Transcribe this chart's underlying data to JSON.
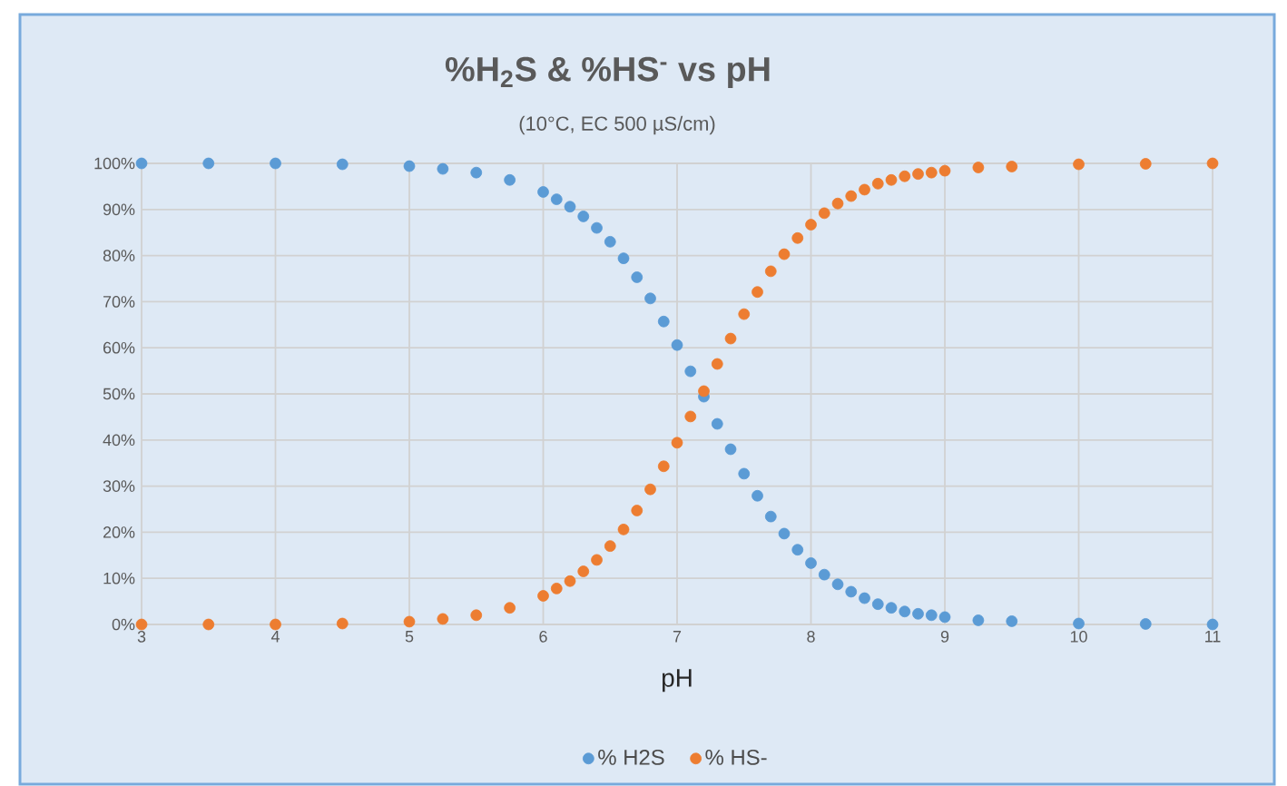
{
  "chart_data": {
    "type": "scatter",
    "title": "%H$_{2}$S & %HS$^{-}$ vs pH",
    "subtitle": "(10°C, EC 500 µS/cm)",
    "xlabel": "pH",
    "x": [
      3,
      3.5,
      4,
      4.5,
      5,
      5.25,
      5.5,
      5.75,
      6,
      6.1,
      6.2,
      6.3,
      6.4,
      6.5,
      6.6,
      6.7,
      6.8,
      6.9,
      7,
      7.1,
      7.2,
      7.3,
      7.4,
      7.5,
      7.6,
      7.7,
      7.8,
      7.9,
      8,
      8.1,
      8.2,
      8.3,
      8.4,
      8.5,
      8.6,
      8.7,
      8.8,
      8.9,
      9,
      9.25,
      9.5,
      10,
      10.5,
      11
    ],
    "series": [
      {
        "name": "% H2S",
        "color": "#5b9bd5",
        "values": [
          100,
          100,
          100,
          99.8,
          99.4,
          98.8,
          98,
          96.4,
          93.8,
          92.2,
          90.6,
          88.5,
          86,
          83,
          79.4,
          75.3,
          70.7,
          65.7,
          60.6,
          54.9,
          49.4,
          43.5,
          38,
          32.7,
          27.9,
          23.4,
          19.7,
          16.2,
          13.3,
          10.8,
          8.7,
          7.1,
          5.7,
          4.4,
          3.6,
          2.8,
          2.3,
          2,
          1.6,
          0.9,
          0.7,
          0.2,
          0.1,
          0
        ]
      },
      {
        "name": "% HS-",
        "color": "#ed7d31",
        "values": [
          0,
          0,
          0,
          0.2,
          0.6,
          1.2,
          2,
          3.6,
          6.2,
          7.8,
          9.4,
          11.5,
          14,
          17,
          20.6,
          24.7,
          29.3,
          34.3,
          39.4,
          45.1,
          50.6,
          56.5,
          62,
          67.3,
          72.1,
          76.6,
          80.3,
          83.8,
          86.7,
          89.2,
          91.3,
          92.9,
          94.3,
          95.6,
          96.4,
          97.2,
          97.7,
          98,
          98.4,
          99.1,
          99.3,
          99.8,
          99.9,
          100
        ]
      }
    ],
    "xlim": [
      3,
      11
    ],
    "xticks": [
      3,
      4,
      5,
      6,
      7,
      8,
      9,
      10,
      11
    ],
    "ylim": [
      0,
      100
    ],
    "yticks": [
      {
        "value": 0,
        "label": "0%"
      },
      {
        "value": 10,
        "label": "10%"
      },
      {
        "value": 20,
        "label": "20%"
      },
      {
        "value": 30,
        "label": "30%"
      },
      {
        "value": 40,
        "label": "40%"
      },
      {
        "value": 50,
        "label": "50%"
      },
      {
        "value": 60,
        "label": "60%"
      },
      {
        "value": 70,
        "label": "70%"
      },
      {
        "value": 80,
        "label": "80%"
      },
      {
        "value": 90,
        "label": "90%"
      },
      {
        "value": 100,
        "label": "100%"
      }
    ],
    "grid": true,
    "legend": "bottom",
    "marker": "circle"
  }
}
